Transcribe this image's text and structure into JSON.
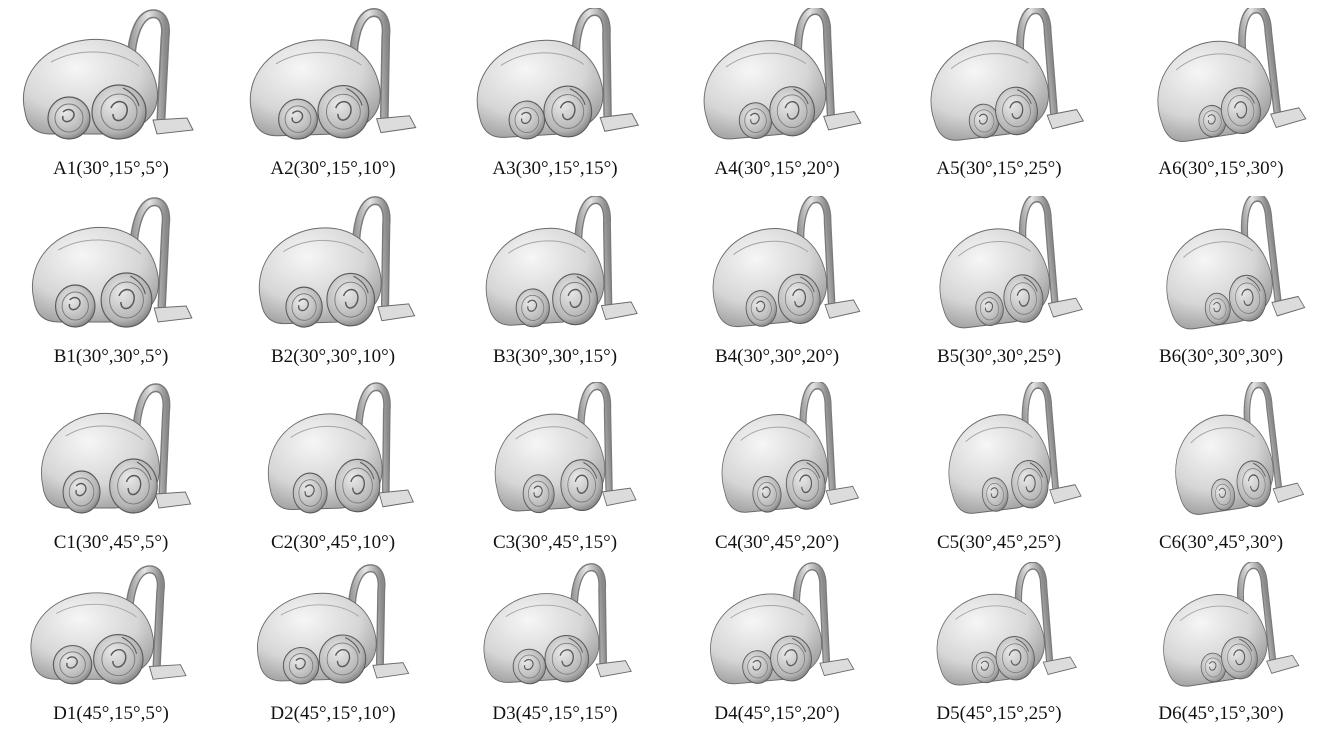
{
  "figure": {
    "rows": [
      {
        "row": "A",
        "cells": [
          {
            "label": "A1(30°,15°,5°)",
            "view": {
              "elev": 30,
              "azim": 15,
              "roll": 5
            }
          },
          {
            "label": "A2(30°,15°,10°)",
            "view": {
              "elev": 30,
              "azim": 15,
              "roll": 10
            }
          },
          {
            "label": "A3(30°,15°,15°)",
            "view": {
              "elev": 30,
              "azim": 15,
              "roll": 15
            }
          },
          {
            "label": "A4(30°,15°,20°)",
            "view": {
              "elev": 30,
              "azim": 15,
              "roll": 20
            }
          },
          {
            "label": "A5(30°,15°,25°)",
            "view": {
              "elev": 30,
              "azim": 15,
              "roll": 25
            }
          },
          {
            "label": "A6(30°,15°,30°)",
            "view": {
              "elev": 30,
              "azim": 15,
              "roll": 30
            }
          }
        ]
      },
      {
        "row": "B",
        "cells": [
          {
            "label": "B1(30°,30°,5°)",
            "view": {
              "elev": 30,
              "azim": 30,
              "roll": 5
            }
          },
          {
            "label": "B2(30°,30°,10°)",
            "view": {
              "elev": 30,
              "azim": 30,
              "roll": 10
            }
          },
          {
            "label": "B3(30°,30°,15°)",
            "view": {
              "elev": 30,
              "azim": 30,
              "roll": 15
            }
          },
          {
            "label": "B4(30°,30°,20°)",
            "view": {
              "elev": 30,
              "azim": 30,
              "roll": 20
            }
          },
          {
            "label": "B5(30°,30°,25°)",
            "view": {
              "elev": 30,
              "azim": 30,
              "roll": 25
            }
          },
          {
            "label": "B6(30°,30°,30°)",
            "view": {
              "elev": 30,
              "azim": 30,
              "roll": 30
            }
          }
        ]
      },
      {
        "row": "C",
        "cells": [
          {
            "label": "C1(30°,45°,5°)",
            "view": {
              "elev": 30,
              "azim": 45,
              "roll": 5
            }
          },
          {
            "label": "C2(30°,45°,10°)",
            "view": {
              "elev": 30,
              "azim": 45,
              "roll": 10
            }
          },
          {
            "label": "C3(30°,45°,15°)",
            "view": {
              "elev": 30,
              "azim": 45,
              "roll": 15
            }
          },
          {
            "label": "C4(30°,45°,20°)",
            "view": {
              "elev": 30,
              "azim": 45,
              "roll": 20
            }
          },
          {
            "label": "C5(30°,45°,25°)",
            "view": {
              "elev": 30,
              "azim": 45,
              "roll": 25
            }
          },
          {
            "label": "C6(30°,45°,30°)",
            "view": {
              "elev": 30,
              "azim": 45,
              "roll": 30
            }
          }
        ]
      },
      {
        "row": "D",
        "cells": [
          {
            "label": "D1(45°,15°,5°)",
            "view": {
              "elev": 45,
              "azim": 15,
              "roll": 5
            }
          },
          {
            "label": "D2(45°,15°,10°)",
            "view": {
              "elev": 45,
              "azim": 15,
              "roll": 10
            }
          },
          {
            "label": "D3(45°,15°,15°)",
            "view": {
              "elev": 45,
              "azim": 15,
              "roll": 15
            }
          },
          {
            "label": "D4(45°,15°,20°)",
            "view": {
              "elev": 45,
              "azim": 15,
              "roll": 20
            }
          },
          {
            "label": "D5(45°,15°,25°)",
            "view": {
              "elev": 45,
              "azim": 15,
              "roll": 25
            }
          },
          {
            "label": "D6(45°,15°,30°)",
            "view": {
              "elev": 45,
              "azim": 15,
              "roll": 30
            }
          }
        ]
      }
    ],
    "colors": {
      "background": "#ffffff",
      "body_light": "#f1f1f1",
      "body_mid": "#c9c9c9",
      "body_dark": "#8a8a8a",
      "outline": "#5a5a5a",
      "label": "#111111"
    },
    "subject_icon": "vacuum-cleaner-render"
  }
}
